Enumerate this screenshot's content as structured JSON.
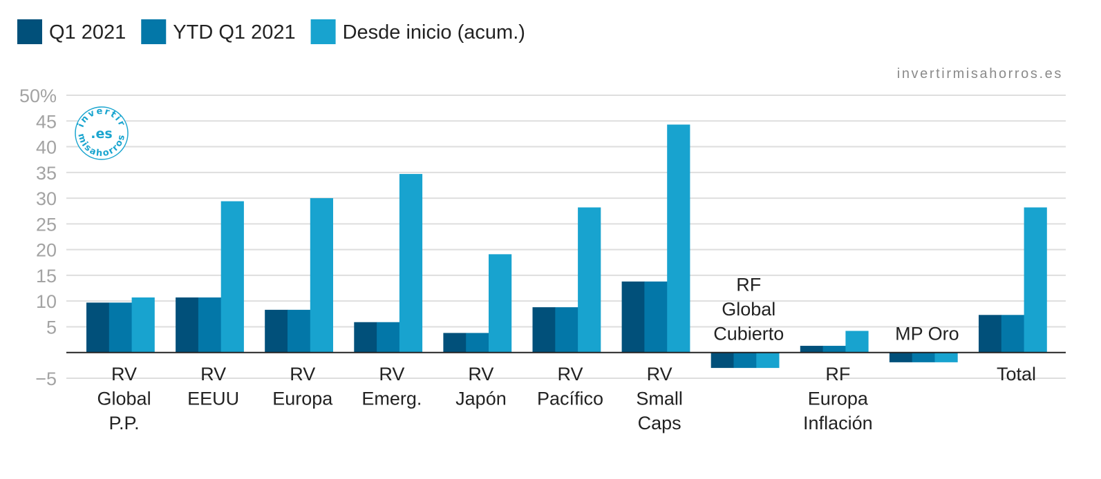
{
  "source": "invertirmisahorros.es",
  "logo": {
    "top_text": "invertir",
    "center_text": ".es",
    "bottom_text": "misahorros",
    "color": "#1aa5cf"
  },
  "colors": {
    "q1": "#01507a",
    "ytd": "#0377a8",
    "inception": "#18a3cf",
    "grid": "#dedede",
    "axis": "#222222",
    "tick_text": "#a3a3a3"
  },
  "chart_data": {
    "type": "bar",
    "title": "",
    "xlabel": "",
    "ylabel": "",
    "ylim": [
      -5,
      50
    ],
    "yticks": [
      -5,
      5,
      10,
      15,
      20,
      25,
      30,
      35,
      40,
      45,
      50
    ],
    "ytick_labels": [
      "−5",
      "5",
      "10",
      "15",
      "20",
      "25",
      "30",
      "35",
      "40",
      "45",
      "50%"
    ],
    "grid": true,
    "legend_position": "top-left",
    "categories": [
      [
        "RV",
        "Global",
        "P.P."
      ],
      [
        "RV",
        "EEUU"
      ],
      [
        "RV",
        "Europa"
      ],
      [
        "RV",
        "Emerg."
      ],
      [
        "RV",
        "Japón"
      ],
      [
        "RV",
        "Pacífico"
      ],
      [
        "RV",
        "Small",
        "Caps"
      ],
      [
        "RF",
        "Global",
        "Cubierto"
      ],
      [
        "RF",
        "Europa",
        "Inflación"
      ],
      [
        "MP Oro"
      ],
      [
        "Total"
      ]
    ],
    "series": [
      {
        "name": "Q1 2021",
        "values": [
          9.7,
          10.7,
          8.3,
          5.9,
          3.8,
          8.8,
          13.8,
          -3.0,
          1.3,
          -1.9,
          7.3
        ]
      },
      {
        "name": "YTD Q1 2021",
        "values": [
          9.7,
          10.7,
          8.3,
          5.9,
          3.8,
          8.8,
          13.8,
          -3.0,
          1.3,
          -1.9,
          7.3
        ]
      },
      {
        "name": "Desde inicio (acum.)",
        "values": [
          10.7,
          29.4,
          30.0,
          34.7,
          19.1,
          28.2,
          44.3,
          -3.0,
          4.2,
          -1.9,
          28.2
        ]
      }
    ]
  }
}
